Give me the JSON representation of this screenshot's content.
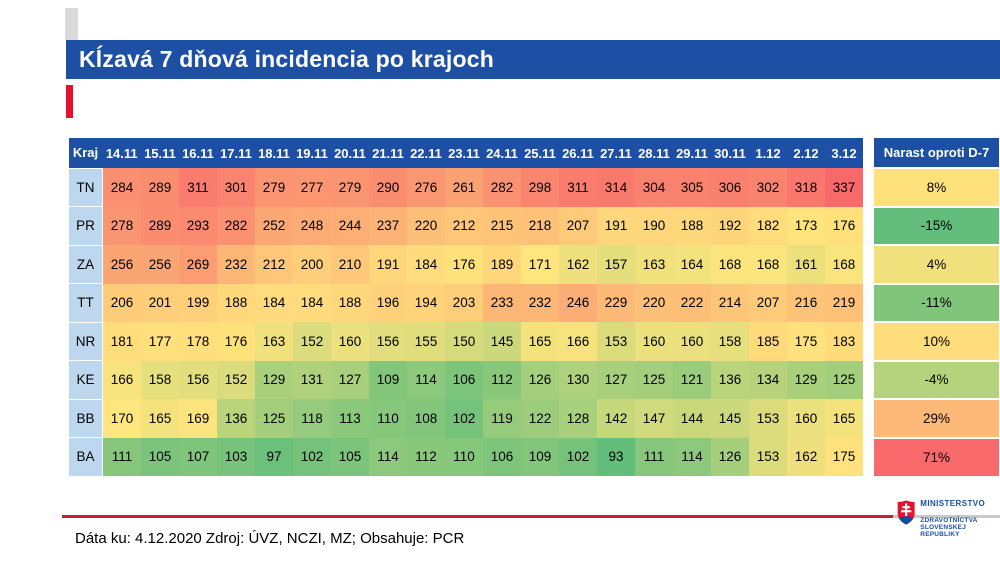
{
  "slide": {
    "title": "Kĺzavá 7 dňová incidencia po krajoch",
    "footer": "Dáta ku: 4.12.2020 Zdroj: ÚVZ, NCZI, MZ; Obsahuje: PCR",
    "logo": {
      "line1": "MINISTERSTVO",
      "line2": "ZDRAVOTNÍCTVA",
      "line3": "SLOVENSKEJ REPUBLIKY"
    }
  },
  "colors": {
    "banner_blue": "#1d50a5",
    "accent_red": "#e8112d",
    "footer_line_red": "#c5242c",
    "region_cell_blue": "#bdd7ee",
    "scale_min_green": "#63be7b",
    "scale_mid_yellow": "#ffe57d",
    "scale_max_red": "#f8696b"
  },
  "chart_data": {
    "type": "heatmap",
    "title": "Kĺzavá 7 dňová incidencia po krajoch",
    "corner_header": "Kraj",
    "growth_header": "Narast oproti D-7",
    "dates": [
      "14.11",
      "15.11",
      "16.11",
      "17.11",
      "18.11",
      "19.11",
      "20.11",
      "21.11",
      "22.11",
      "23.11",
      "24.11",
      "25.11",
      "26.11",
      "27.11",
      "28.11",
      "29.11",
      "30.11",
      "1.12",
      "2.12",
      "3.12"
    ],
    "rows": [
      {
        "kraj": "TN",
        "values": [
          284,
          289,
          311,
          301,
          279,
          277,
          279,
          290,
          276,
          261,
          282,
          298,
          311,
          314,
          304,
          305,
          306,
          302,
          318,
          337
        ],
        "growth_value": 8,
        "growth_label": "8%"
      },
      {
        "kraj": "PR",
        "values": [
          278,
          289,
          293,
          282,
          252,
          248,
          244,
          237,
          220,
          212,
          215,
          218,
          207,
          191,
          190,
          188,
          192,
          182,
          173,
          176
        ],
        "growth_value": -15,
        "growth_label": "-15%"
      },
      {
        "kraj": "ZA",
        "values": [
          256,
          256,
          269,
          232,
          212,
          200,
          210,
          191,
          184,
          176,
          189,
          171,
          162,
          157,
          163,
          164,
          168,
          168,
          161,
          168
        ],
        "growth_value": 4,
        "growth_label": "4%"
      },
      {
        "kraj": "TT",
        "values": [
          206,
          201,
          199,
          188,
          184,
          184,
          188,
          196,
          194,
          203,
          233,
          232,
          246,
          229,
          220,
          222,
          214,
          207,
          216,
          219
        ],
        "growth_value": -11,
        "growth_label": "-11%"
      },
      {
        "kraj": "NR",
        "values": [
          181,
          177,
          178,
          176,
          163,
          152,
          160,
          156,
          155,
          150,
          145,
          165,
          166,
          153,
          160,
          160,
          158,
          185,
          175,
          183
        ],
        "growth_value": 10,
        "growth_label": "10%"
      },
      {
        "kraj": "KE",
        "values": [
          166,
          158,
          156,
          152,
          129,
          131,
          127,
          109,
          114,
          106,
          112,
          126,
          130,
          127,
          125,
          121,
          136,
          134,
          129,
          125
        ],
        "growth_value": -4,
        "growth_label": "-4%"
      },
      {
        "kraj": "BB",
        "values": [
          170,
          165,
          169,
          136,
          125,
          118,
          113,
          110,
          108,
          102,
          119,
          122,
          128,
          142,
          147,
          144,
          145,
          153,
          160,
          165
        ],
        "growth_value": 29,
        "growth_label": "29%"
      },
      {
        "kraj": "BA",
        "values": [
          111,
          105,
          107,
          103,
          97,
          102,
          105,
          114,
          112,
          110,
          106,
          109,
          102,
          93,
          111,
          114,
          126,
          153,
          162,
          175
        ],
        "growth_value": 71,
        "growth_label": "71%"
      }
    ],
    "value_scale": {
      "min": 93,
      "mid": 170.5,
      "max": 337
    },
    "growth_scale": {
      "min": -15,
      "mid": 6,
      "max": 71
    },
    "scale_colors": [
      "#63be7b",
      "#ffe57d",
      "#f8696b"
    ],
    "legend_position": "none",
    "grid": false
  }
}
